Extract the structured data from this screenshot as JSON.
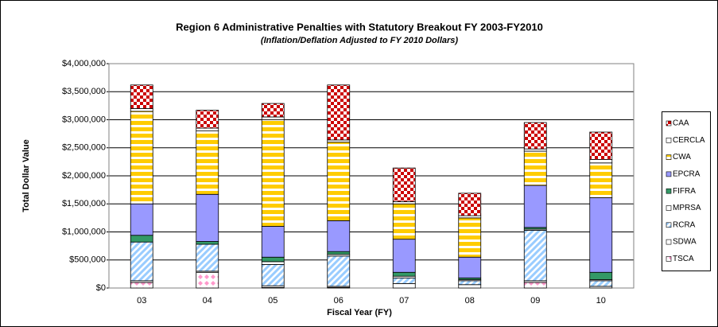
{
  "chart_data": {
    "type": "stacked_bar",
    "title": "Region 6 Administrative Penalties with Statutory Breakout FY 2003-FY2010",
    "subtitle": "(Inflation/Deflation Adjusted to FY 2010 Dollars)",
    "x_label": "Fiscal Year (FY)",
    "y_label": "Total Dollar Value",
    "categories": [
      "03",
      "04",
      "05",
      "06",
      "07",
      "08",
      "09",
      "10"
    ],
    "series": [
      {
        "name": "TSCA",
        "color": "#ff99cc",
        "pattern": "diamond",
        "values": [
          100000,
          280000,
          10000,
          10000,
          0,
          0,
          100000,
          0
        ]
      },
      {
        "name": "SDWA",
        "color": "#ffffff",
        "pattern": "solid",
        "values": [
          30000,
          20000,
          30000,
          20000,
          80000,
          60000,
          30000,
          30000
        ]
      },
      {
        "name": "RCRA",
        "color": "#99ccff",
        "pattern": "diagonal",
        "values": [
          690000,
          480000,
          380000,
          540000,
          100000,
          70000,
          900000,
          100000
        ]
      },
      {
        "name": "MPRSA",
        "color": "#ffffff",
        "pattern": "solid",
        "values": [
          0,
          0,
          50000,
          30000,
          30000,
          20000,
          20000,
          20000
        ]
      },
      {
        "name": "FIFRA",
        "color": "#339966",
        "pattern": "solid",
        "values": [
          120000,
          50000,
          80000,
          50000,
          70000,
          30000,
          30000,
          130000
        ]
      },
      {
        "name": "EPCRA",
        "color": "#9999ff",
        "pattern": "solid",
        "values": [
          560000,
          840000,
          550000,
          550000,
          590000,
          370000,
          750000,
          1330000
        ]
      },
      {
        "name": "CWA",
        "color": "#ffcc00",
        "pattern": "hstripe",
        "values": [
          1650000,
          1130000,
          1900000,
          1400000,
          630000,
          700000,
          610000,
          620000
        ]
      },
      {
        "name": "CERCLA",
        "color": "#ffffff",
        "pattern": "solid",
        "values": [
          50000,
          50000,
          50000,
          40000,
          40000,
          40000,
          40000,
          60000
        ]
      },
      {
        "name": "CAA",
        "color": "#cc0000",
        "pattern": "checker",
        "values": [
          420000,
          320000,
          240000,
          980000,
          600000,
          400000,
          470000,
          490000
        ]
      }
    ],
    "ylim": [
      0,
      4000000
    ],
    "yticks": [
      {
        "value": 0,
        "label": "$0"
      },
      {
        "value": 500000,
        "label": "$500,000"
      },
      {
        "value": 1000000,
        "label": "$1,000,000"
      },
      {
        "value": 1500000,
        "label": "$1,500,000"
      },
      {
        "value": 2000000,
        "label": "$2,000,000"
      },
      {
        "value": 2500000,
        "label": "$2,500,000"
      },
      {
        "value": 3000000,
        "label": "$3,000,000"
      },
      {
        "value": 3500000,
        "label": "$3,500,000"
      },
      {
        "value": 4000000,
        "label": "$4,000,000"
      }
    ],
    "grid": true
  }
}
